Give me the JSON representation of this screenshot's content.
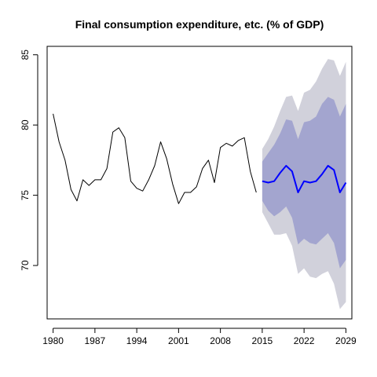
{
  "chart_data": {
    "type": "line",
    "title": "Final consumption expenditure, etc. (% of GDP)",
    "xlabel": "",
    "ylabel": "",
    "xlim": [
      1979,
      2030
    ],
    "ylim": [
      66.2,
      85.6
    ],
    "x_ticks": [
      1980,
      1987,
      1994,
      2001,
      2008,
      2015,
      2022,
      2029
    ],
    "y_ticks": [
      70,
      75,
      80,
      85
    ],
    "grid": false,
    "series": [
      {
        "role": "historical",
        "color": "#000000",
        "x": [
          1980,
          1981,
          1982,
          1983,
          1984,
          1985,
          1986,
          1987,
          1988,
          1989,
          1990,
          1991,
          1992,
          1993,
          1994,
          1995,
          1996,
          1997,
          1998,
          1999,
          2000,
          2001,
          2002,
          2003,
          2004,
          2005,
          2006,
          2007,
          2008,
          2009,
          2010,
          2011,
          2012,
          2013,
          2014
        ],
        "y": [
          80.8,
          78.8,
          77.5,
          75.4,
          74.6,
          76.1,
          75.7,
          76.1,
          76.1,
          76.9,
          79.5,
          79.8,
          79.1,
          76.0,
          75.5,
          75.3,
          76.1,
          77.1,
          78.8,
          77.6,
          75.8,
          74.4,
          75.2,
          75.2,
          75.6,
          76.9,
          77.5,
          75.9,
          78.4,
          78.7,
          78.5,
          78.9,
          79.1,
          76.7,
          75.2
        ]
      },
      {
        "role": "forecast",
        "color": "#0000ff",
        "x": [
          2015,
          2016,
          2017,
          2018,
          2019,
          2020,
          2021,
          2022,
          2023,
          2024,
          2025,
          2026,
          2027,
          2028,
          2029
        ],
        "y": [
          76.0,
          75.9,
          76.0,
          76.6,
          77.1,
          76.7,
          75.2,
          76.0,
          75.9,
          76.0,
          76.5,
          77.1,
          76.8,
          75.2,
          75.9
        ]
      }
    ],
    "bands": [
      {
        "level": "95",
        "color": "#d1d1db",
        "x": [
          2015,
          2016,
          2017,
          2018,
          2019,
          2020,
          2021,
          2022,
          2023,
          2024,
          2025,
          2026,
          2027,
          2028,
          2029
        ],
        "lower": [
          73.8,
          73.0,
          72.2,
          72.2,
          72.3,
          71.4,
          69.4,
          69.8,
          69.2,
          69.1,
          69.4,
          69.6,
          68.7,
          66.9,
          67.4
        ],
        "upper": [
          78.3,
          79.0,
          79.9,
          81.0,
          82.0,
          82.1,
          81.0,
          82.3,
          82.5,
          83.1,
          84.0,
          84.7,
          84.6,
          83.5,
          84.5
        ]
      },
      {
        "level": "80",
        "color": "#a3a5cf",
        "x": [
          2015,
          2016,
          2017,
          2018,
          2019,
          2020,
          2021,
          2022,
          2023,
          2024,
          2025,
          2026,
          2027,
          2028,
          2029
        ],
        "lower": [
          74.6,
          73.9,
          73.5,
          73.8,
          74.2,
          73.4,
          71.5,
          71.9,
          71.6,
          71.5,
          71.9,
          72.3,
          71.6,
          69.8,
          70.4
        ],
        "upper": [
          77.4,
          78.0,
          78.6,
          79.4,
          80.4,
          80.3,
          79.0,
          80.2,
          80.3,
          80.6,
          81.5,
          82.0,
          81.8,
          80.6,
          81.5
        ]
      }
    ]
  }
}
